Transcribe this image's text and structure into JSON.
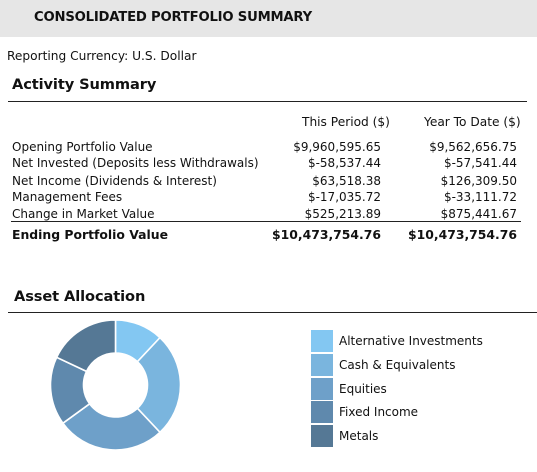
{
  "header": {
    "title": "CONSOLIDATED PORTFOLIO SUMMARY",
    "background": "#e6e6e6"
  },
  "reporting": {
    "currency": "Reporting Currency: U.S. Dollar"
  },
  "activity_summary": {
    "title": "Activity Summary",
    "columns": [
      "This Period ($)",
      "Year To Date ($)"
    ],
    "rows": [
      {
        "label": "Opening Portfolio Value",
        "this_period": "$9,960,595.65",
        "year_to_date": "$9,562,656.75"
      },
      {
        "label": "Net Invested (Deposits less Withdrawals)",
        "this_period": "$-58,537.44",
        "year_to_date": "$-57,541.44"
      },
      {
        "label": "Net Income (Dividends & Interest)",
        "this_period": "$63,518.38",
        "year_to_date": "$126,309.50"
      },
      {
        "label": "Management Fees",
        "this_period": "$-17,035.72",
        "year_to_date": "$-33,111.72"
      },
      {
        "label": "Change in Market Value",
        "this_period": "$525,213.89",
        "year_to_date": "$875,441.67"
      }
    ],
    "ending": {
      "label": "Ending Portfolio Value",
      "this_period": "$10,473,754.76",
      "year_to_date": "$10,473,754.76"
    }
  },
  "asset_allocation": {
    "title": "Asset Allocation",
    "legend": [
      {
        "label": "Alternative Investments",
        "color": "#83c7f2"
      },
      {
        "label": "Cash & Equivalents",
        "color": "#7ab5de"
      },
      {
        "label": "Equities",
        "color": "#6ea0c9"
      },
      {
        "label": "Fixed Income",
        "color": "#5f89ad"
      },
      {
        "label": "Metals",
        "color": "#557895"
      }
    ],
    "chart_data": {
      "type": "pie",
      "categories": [
        "Alternative Investments",
        "Cash & Equivalents",
        "Equities",
        "Fixed Income",
        "Metals"
      ],
      "values": [
        12,
        26,
        27,
        17,
        18
      ],
      "colors": [
        "#83c7f2",
        "#7ab5de",
        "#6ea0c9",
        "#5f89ad",
        "#557895"
      ],
      "start_angle_degrees": 0
    }
  }
}
